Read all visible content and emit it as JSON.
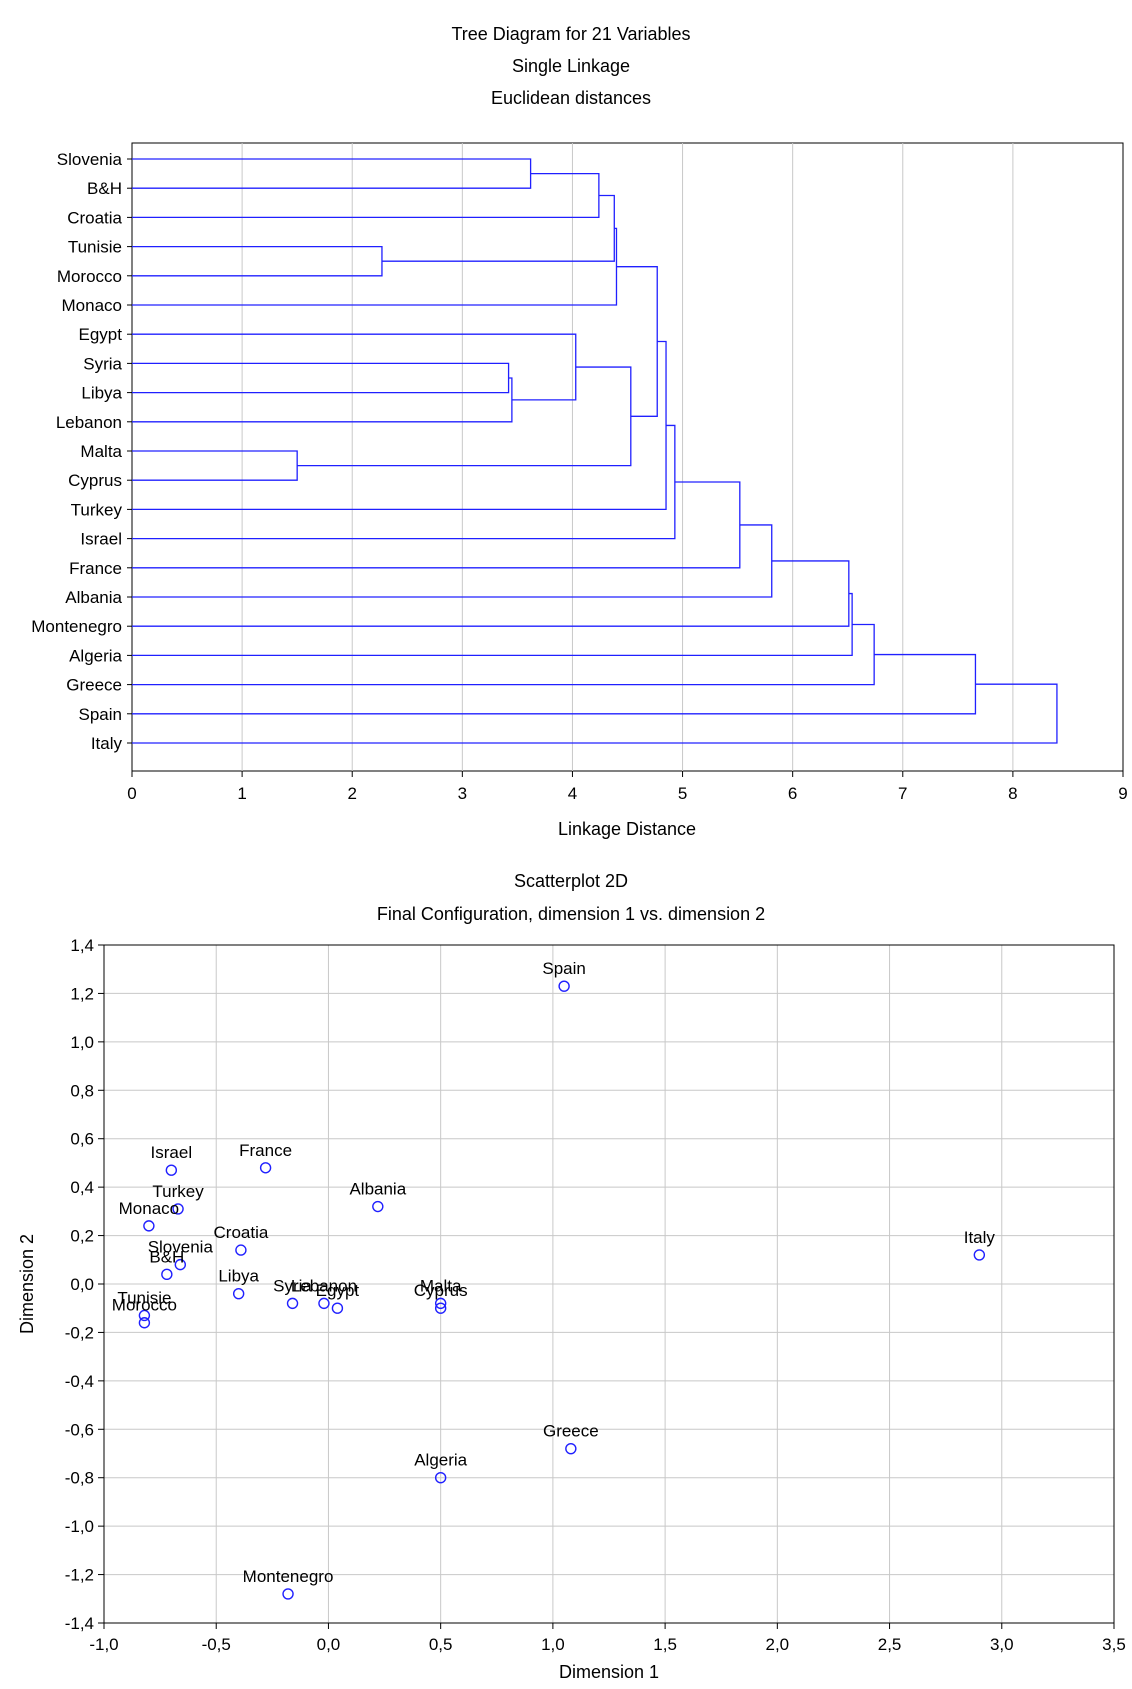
{
  "chart_data": [
    {
      "type": "dendrogram",
      "title": "Tree Diagram for 21  Variables",
      "subtitle_1": "Single Linkage",
      "subtitle_2": "Euclidean distances",
      "xlabel": "Linkage Distance",
      "xlim": [
        0,
        9
      ],
      "xticks": [
        "0",
        "1",
        "2",
        "3",
        "4",
        "5",
        "6",
        "7",
        "8",
        "9"
      ],
      "grid": "vertical",
      "leaves": [
        "Slovenia",
        "B&H",
        "Croatia",
        "Tunisie",
        "Morocco",
        "Monaco",
        "Egypt",
        "Syria",
        "Libya",
        "Lebanon",
        "Malta",
        "Cyprus",
        "Turkey",
        "Israel",
        "France",
        "Albania",
        "Montenegro",
        "Algeria",
        "Greece",
        "Spain",
        "Italy"
      ],
      "merges": [
        {
          "a": "Malta",
          "b": "Cyprus",
          "height": 1.5
        },
        {
          "a": "Tunisie",
          "b": "Morocco",
          "height": 2.27
        },
        {
          "a": "Syria",
          "b": "Libya",
          "height": 3.42
        },
        {
          "a": "(Syria, Libya)",
          "b": "Lebanon",
          "height": 3.45
        },
        {
          "a": "Slovenia",
          "b": "B&H",
          "height": 3.62
        },
        {
          "a": "Egypt",
          "b": "(Syria, Libya, Lebanon)",
          "height": 4.03
        },
        {
          "a": "(Slovenia, B&H)",
          "b": "Croatia",
          "height": 4.24
        },
        {
          "a": "(Slovenia, B&H, Croatia)",
          "b": "(Tunisie, Morocco)",
          "height": 4.38
        },
        {
          "a": "(Slovenia … Morocco)",
          "b": "Monaco",
          "height": 4.4
        },
        {
          "a": "(Egypt … Lebanon)",
          "b": "(Malta, Cyprus)",
          "height": 4.53
        },
        {
          "a": "(Slovenia … Monaco)",
          "b": "(Egypt … Cyprus)",
          "height": 4.77
        },
        {
          "a": "(Slovenia … Cyprus)",
          "b": "Turkey",
          "height": 4.85
        },
        {
          "a": "(Slovenia … Turkey)",
          "b": "Israel",
          "height": 4.93
        },
        {
          "a": "(Slovenia … Israel)",
          "b": "France",
          "height": 5.52
        },
        {
          "a": "(Slovenia … France)",
          "b": "Albania",
          "height": 5.81
        },
        {
          "a": "(Slovenia … Albania)",
          "b": "Montenegro",
          "height": 6.51
        },
        {
          "a": "(Slovenia … Montenegro)",
          "b": "Algeria",
          "height": 6.54
        },
        {
          "a": "(Slovenia … Algeria)",
          "b": "Greece",
          "height": 6.74
        },
        {
          "a": "(Slovenia … Greece)",
          "b": "Spain",
          "height": 7.66
        },
        {
          "a": "(Slovenia … Spain)",
          "b": "Italy",
          "height": 8.4
        }
      ],
      "colors": {
        "line": "#2020ff",
        "grid": "#c8c8c8"
      }
    },
    {
      "type": "scatter",
      "title": "Scatterplot 2D",
      "subtitle": "Final Configuration, dimension 1  vs. dimension 2",
      "xlabel": "Dimension 1",
      "ylabel": "Dimension 2",
      "xlim": [
        -1.0,
        3.5
      ],
      "ylim": [
        -1.4,
        1.4
      ],
      "xticks": [
        "-1,0",
        "-0,5",
        "0,0",
        "0,5",
        "1,0",
        "1,5",
        "2,0",
        "2,5",
        "3,0",
        "3,5"
      ],
      "yticks": [
        "1,4",
        "1,2",
        "1,0",
        "0,8",
        "0,6",
        "0,4",
        "0,2",
        "0,0",
        "-0,2",
        "-0,4",
        "-0,6",
        "-0,8",
        "-1,0",
        "-1,2",
        "-1,4"
      ],
      "grid": "both",
      "points": [
        {
          "label": "Spain",
          "x": 1.05,
          "y": 1.23
        },
        {
          "label": "Italy",
          "x": 2.9,
          "y": 0.12
        },
        {
          "label": "Israel",
          "x": -0.7,
          "y": 0.47
        },
        {
          "label": "France",
          "x": -0.28,
          "y": 0.48
        },
        {
          "label": "Albania",
          "x": 0.22,
          "y": 0.32
        },
        {
          "label": "Turkey",
          "x": -0.67,
          "y": 0.31
        },
        {
          "label": "Monaco",
          "x": -0.8,
          "y": 0.24
        },
        {
          "label": "Croatia",
          "x": -0.39,
          "y": 0.14
        },
        {
          "label": "Slovenia",
          "x": -0.66,
          "y": 0.08
        },
        {
          "label": "B&H",
          "x": -0.72,
          "y": 0.04
        },
        {
          "label": "Libya",
          "x": -0.4,
          "y": -0.04
        },
        {
          "label": "Syria",
          "x": -0.16,
          "y": -0.08
        },
        {
          "label": "Lebanon",
          "x": -0.02,
          "y": -0.08
        },
        {
          "label": "Egypt",
          "x": 0.04,
          "y": -0.1
        },
        {
          "label": "Malta",
          "x": 0.5,
          "y": -0.08
        },
        {
          "label": "Cyprus",
          "x": 0.5,
          "y": -0.1
        },
        {
          "label": "Tunisie",
          "x": -0.82,
          "y": -0.13
        },
        {
          "label": "Morocco",
          "x": -0.82,
          "y": -0.16
        },
        {
          "label": "Greece",
          "x": 1.08,
          "y": -0.68
        },
        {
          "label": "Algeria",
          "x": 0.5,
          "y": -0.8
        },
        {
          "label": "Montenegro",
          "x": -0.18,
          "y": -1.28
        }
      ],
      "colors": {
        "marker": "#2020ff",
        "grid": "#c8c8c8"
      }
    }
  ]
}
